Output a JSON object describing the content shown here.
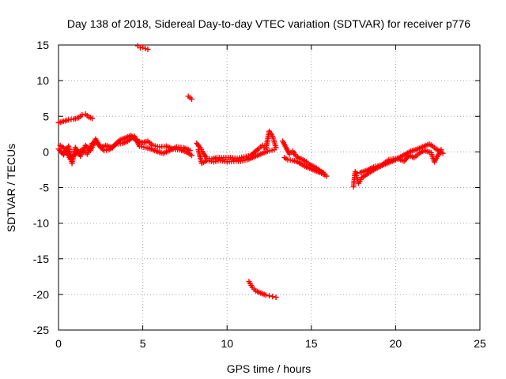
{
  "chart_data": {
    "type": "scatter",
    "title": "Day 138 of 2018, Sidereal Day-to-day VTEC variation (SDTVAR) for receiver p776",
    "xlabel": "GPS time / hours",
    "ylabel": "SDTVAR / TECUs",
    "xlim": [
      0,
      25
    ],
    "ylim": [
      -25,
      15
    ],
    "xticks": [
      0,
      5,
      10,
      15,
      20,
      25
    ],
    "yticks": [
      -25,
      -20,
      -15,
      -10,
      -5,
      0,
      5,
      10,
      15
    ],
    "grid": true,
    "marker": "+",
    "color": "#ff0000",
    "series": [
      {
        "name": "main-band-a",
        "points": [
          [
            0.0,
            0.4
          ],
          [
            0.3,
            -0.4
          ],
          [
            0.6,
            0.8
          ],
          [
            0.8,
            -1.6
          ],
          [
            1.0,
            0.6
          ],
          [
            1.3,
            -0.6
          ],
          [
            1.6,
            0.9
          ],
          [
            1.9,
            0.2
          ],
          [
            2.2,
            1.8
          ],
          [
            2.5,
            0.6
          ],
          [
            2.8,
            0.9
          ],
          [
            3.2,
            0.6
          ],
          [
            3.6,
            1.6
          ],
          [
            4.0,
            2.0
          ],
          [
            4.3,
            2.3
          ],
          [
            4.6,
            1.6
          ],
          [
            5.0,
            1.3
          ],
          [
            5.3,
            1.5
          ],
          [
            5.6,
            0.9
          ],
          [
            6.0,
            0.7
          ],
          [
            6.4,
            0.8
          ],
          [
            6.8,
            0.4
          ],
          [
            7.2,
            0.3
          ],
          [
            7.6,
            0.0
          ],
          [
            7.9,
            -0.5
          ]
        ]
      },
      {
        "name": "main-band-b",
        "points": [
          [
            0.1,
            0.9
          ],
          [
            0.4,
            0.4
          ],
          [
            0.7,
            -1.0
          ],
          [
            1.0,
            -0.3
          ],
          [
            1.4,
            0.3
          ],
          [
            1.7,
            -0.3
          ],
          [
            2.0,
            1.2
          ],
          [
            2.3,
            1.2
          ],
          [
            2.7,
            0.2
          ],
          [
            3.0,
            0.3
          ],
          [
            3.4,
            1.1
          ],
          [
            3.8,
            1.2
          ],
          [
            4.1,
            1.5
          ],
          [
            4.5,
            2.2
          ],
          [
            4.8,
            0.8
          ],
          [
            5.2,
            0.6
          ],
          [
            5.5,
            0.4
          ],
          [
            5.8,
            0.1
          ],
          [
            6.2,
            -0.2
          ],
          [
            6.6,
            0.2
          ],
          [
            7.0,
            0.7
          ],
          [
            7.4,
            0.6
          ],
          [
            7.8,
            0.2
          ]
        ]
      },
      {
        "name": "upper-arc",
        "points": [
          [
            0.0,
            4.1
          ],
          [
            0.3,
            4.3
          ],
          [
            0.6,
            4.5
          ],
          [
            0.9,
            4.6
          ],
          [
            1.2,
            4.8
          ],
          [
            1.4,
            5.2
          ],
          [
            1.6,
            5.3
          ],
          [
            1.8,
            4.9
          ],
          [
            2.0,
            4.7
          ]
        ]
      },
      {
        "name": "top-spike",
        "points": [
          [
            4.7,
            14.9
          ],
          [
            4.85,
            14.6
          ],
          [
            5.0,
            14.7
          ],
          [
            5.15,
            14.5
          ],
          [
            5.3,
            14.4
          ]
        ]
      },
      {
        "name": "small-spike",
        "points": [
          [
            7.7,
            7.8
          ],
          [
            7.8,
            7.6
          ],
          [
            7.9,
            7.4
          ]
        ]
      },
      {
        "name": "middle-band-a",
        "points": [
          [
            8.2,
            1.2
          ],
          [
            8.4,
            0.6
          ],
          [
            8.6,
            -0.2
          ],
          [
            8.8,
            -0.9
          ],
          [
            9.1,
            -1.0
          ],
          [
            9.4,
            -0.8
          ],
          [
            9.8,
            -0.8
          ],
          [
            10.2,
            -0.8
          ],
          [
            10.6,
            -0.9
          ],
          [
            11.0,
            -0.7
          ],
          [
            11.4,
            -0.5
          ],
          [
            11.8,
            0.3
          ],
          [
            12.1,
            0.9
          ],
          [
            12.3,
            0.4
          ],
          [
            12.5,
            2.9
          ],
          [
            12.7,
            2.2
          ],
          [
            12.9,
            0.6
          ]
        ]
      },
      {
        "name": "middle-band-b",
        "points": [
          [
            8.3,
            0.3
          ],
          [
            8.5,
            -1.6
          ],
          [
            8.8,
            -1.2
          ],
          [
            9.2,
            -1.4
          ],
          [
            9.6,
            -1.2
          ],
          [
            10.0,
            -1.4
          ],
          [
            10.4,
            -1.3
          ],
          [
            10.8,
            -1.3
          ],
          [
            11.2,
            -1.1
          ],
          [
            11.6,
            -0.7
          ],
          [
            12.0,
            -0.3
          ],
          [
            12.4,
            0.1
          ],
          [
            12.8,
            0.3
          ]
        ]
      },
      {
        "name": "low-arc",
        "points": [
          [
            11.3,
            -18.2
          ],
          [
            11.5,
            -19.0
          ],
          [
            11.7,
            -19.5
          ],
          [
            11.9,
            -19.7
          ],
          [
            12.1,
            -19.9
          ],
          [
            12.3,
            -20.1
          ],
          [
            12.5,
            -20.2
          ],
          [
            12.7,
            -20.3
          ],
          [
            12.9,
            -20.4
          ]
        ]
      },
      {
        "name": "descending-band",
        "points": [
          [
            13.3,
            1.5
          ],
          [
            13.5,
            0.6
          ],
          [
            13.7,
            -0.3
          ],
          [
            13.9,
            0.1
          ],
          [
            14.1,
            -0.6
          ],
          [
            14.3,
            -0.9
          ],
          [
            14.5,
            -1.1
          ],
          [
            14.7,
            -1.4
          ],
          [
            14.9,
            -1.8
          ],
          [
            15.1,
            -2.0
          ],
          [
            15.3,
            -2.3
          ],
          [
            15.5,
            -2.6
          ],
          [
            15.7,
            -2.9
          ],
          [
            15.9,
            -3.4
          ]
        ]
      },
      {
        "name": "descending-band-b",
        "points": [
          [
            13.4,
            -0.8
          ],
          [
            13.6,
            -1.1
          ],
          [
            13.9,
            -1.2
          ],
          [
            14.2,
            -1.4
          ],
          [
            14.4,
            -1.7
          ],
          [
            14.6,
            -2.0
          ],
          [
            14.9,
            -2.3
          ],
          [
            15.2,
            -2.6
          ],
          [
            15.5,
            -2.9
          ],
          [
            15.8,
            -3.2
          ]
        ]
      },
      {
        "name": "rising-band",
        "points": [
          [
            17.5,
            -4.9
          ],
          [
            17.6,
            -2.8
          ],
          [
            17.8,
            -4.4
          ],
          [
            18.0,
            -3.6
          ],
          [
            18.2,
            -3.3
          ],
          [
            18.5,
            -2.8
          ],
          [
            18.8,
            -2.4
          ],
          [
            19.1,
            -2.0
          ],
          [
            19.4,
            -1.7
          ],
          [
            19.7,
            -1.4
          ],
          [
            20.0,
            -1.1
          ],
          [
            20.3,
            -0.7
          ],
          [
            20.6,
            -0.3
          ],
          [
            20.9,
            0.1
          ],
          [
            21.2,
            0.3
          ],
          [
            21.5,
            0.6
          ],
          [
            21.8,
            0.9
          ],
          [
            22.0,
            1.1
          ],
          [
            22.2,
            0.8
          ],
          [
            22.4,
            0.4
          ],
          [
            22.6,
            0.1
          ],
          [
            22.8,
            -0.2
          ]
        ]
      },
      {
        "name": "rising-band-b",
        "points": [
          [
            17.7,
            -3.0
          ],
          [
            17.9,
            -2.9
          ],
          [
            18.3,
            -2.6
          ],
          [
            18.7,
            -2.1
          ],
          [
            19.2,
            -1.8
          ],
          [
            19.6,
            -1.1
          ],
          [
            20.1,
            -0.9
          ],
          [
            20.5,
            -1.3
          ],
          [
            20.8,
            -0.5
          ],
          [
            21.1,
            -0.8
          ],
          [
            21.4,
            -0.2
          ],
          [
            21.7,
            0.2
          ],
          [
            22.1,
            -0.1
          ],
          [
            22.3,
            -1.4
          ],
          [
            22.7,
            0.3
          ]
        ]
      }
    ]
  }
}
